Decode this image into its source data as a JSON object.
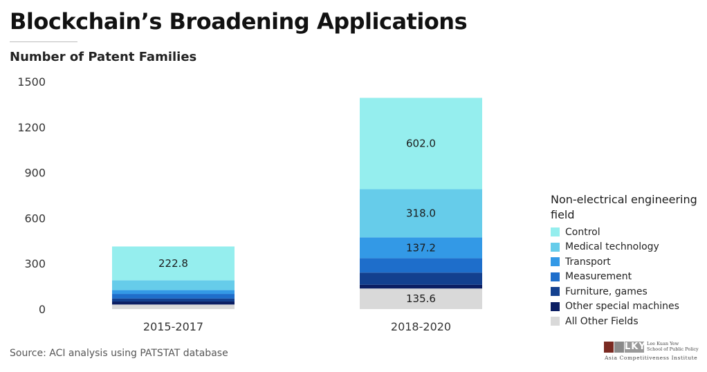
{
  "header": {
    "title": "Blockchain’s Broadening Applications",
    "subtitle": "Number of Patent Families"
  },
  "footer": {
    "source": "Source: ACI analysis using PATSTAT database"
  },
  "logo": {
    "mark": "LKY",
    "line1": "Lee Kuan Yew",
    "line2": "School of Public Policy",
    "line3": "Asia Competitiveness Institute"
  },
  "colors": {
    "Control": "#95eeee",
    "Medical technology": "#66ccea",
    "Transport": "#3399e6",
    "Measurement": "#1e6ecb",
    "Furniture, games": "#13408f",
    "Other special machines": "#0b1e63",
    "All Other Fields": "#d9d9d9"
  },
  "chart_data": {
    "type": "bar",
    "stacked": true,
    "categories": [
      "2015-2017",
      "2018-2020"
    ],
    "yticks": [
      0,
      300,
      600,
      900,
      1200,
      1500
    ],
    "ylim": [
      0,
      1500
    ],
    "title": "",
    "xlabel": "",
    "ylabel": "Number of Patent Families",
    "grid": false,
    "legend_position": "right",
    "legend_title": "Non-electrical engineering field",
    "series": [
      {
        "name": "All Other Fields",
        "values": [
          30,
          135.6
        ],
        "labels": [
          null,
          "135.6"
        ]
      },
      {
        "name": "Other special machines",
        "values": [
          20,
          25
        ],
        "labels": [
          null,
          null
        ]
      },
      {
        "name": "Furniture, games",
        "values": [
          20,
          80
        ],
        "labels": [
          null,
          null
        ]
      },
      {
        "name": "Measurement",
        "values": [
          30,
          95
        ],
        "labels": [
          null,
          null
        ]
      },
      {
        "name": "Transport",
        "values": [
          25,
          137.2
        ],
        "labels": [
          null,
          "137.2"
        ]
      },
      {
        "name": "Medical technology",
        "values": [
          65,
          318.0
        ],
        "labels": [
          null,
          "318.0"
        ]
      },
      {
        "name": "Control",
        "values": [
          222.8,
          602.0
        ],
        "labels": [
          "222.8",
          "602.0"
        ]
      }
    ]
  }
}
